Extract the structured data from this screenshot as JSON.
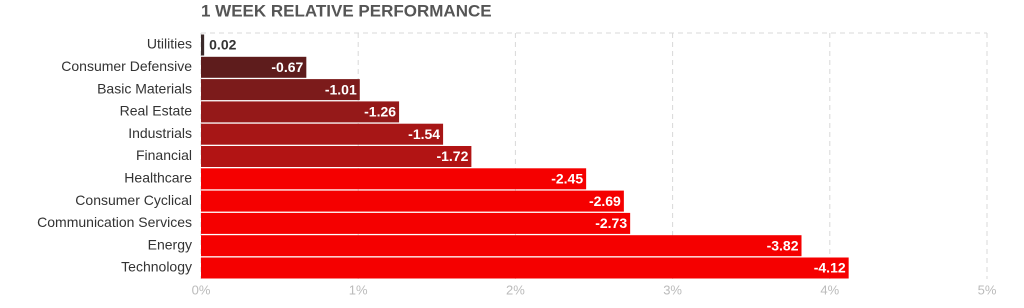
{
  "chart_data": {
    "type": "bar",
    "orientation": "horizontal",
    "title": "1 WEEK RELATIVE PERFORMANCE",
    "categories": [
      "Utilities",
      "Consumer Defensive",
      "Basic Materials",
      "Real Estate",
      "Industrials",
      "Financial",
      "Healthcare",
      "Consumer Cyclical",
      "Communication Services",
      "Energy",
      "Technology"
    ],
    "values": [
      0.02,
      -0.67,
      -1.01,
      -1.26,
      -1.54,
      -1.72,
      -2.45,
      -2.69,
      -2.73,
      -3.82,
      -4.12
    ],
    "colors": [
      "#3b2a2a",
      "#5e1c1c",
      "#7c1b1b",
      "#951919",
      "#a71616",
      "#b21414",
      "#f50000",
      "#f50000",
      "#f50000",
      "#f50000",
      "#f50000"
    ],
    "xlim": [
      0,
      5
    ],
    "xticks": [
      {
        "value": 0,
        "label": "0%"
      },
      {
        "value": 1,
        "label": "1%"
      },
      {
        "value": 2,
        "label": "2%"
      },
      {
        "value": 3,
        "label": "3%"
      },
      {
        "value": 4,
        "label": "4%"
      },
      {
        "value": 5,
        "label": "5%"
      }
    ],
    "grid": true
  }
}
